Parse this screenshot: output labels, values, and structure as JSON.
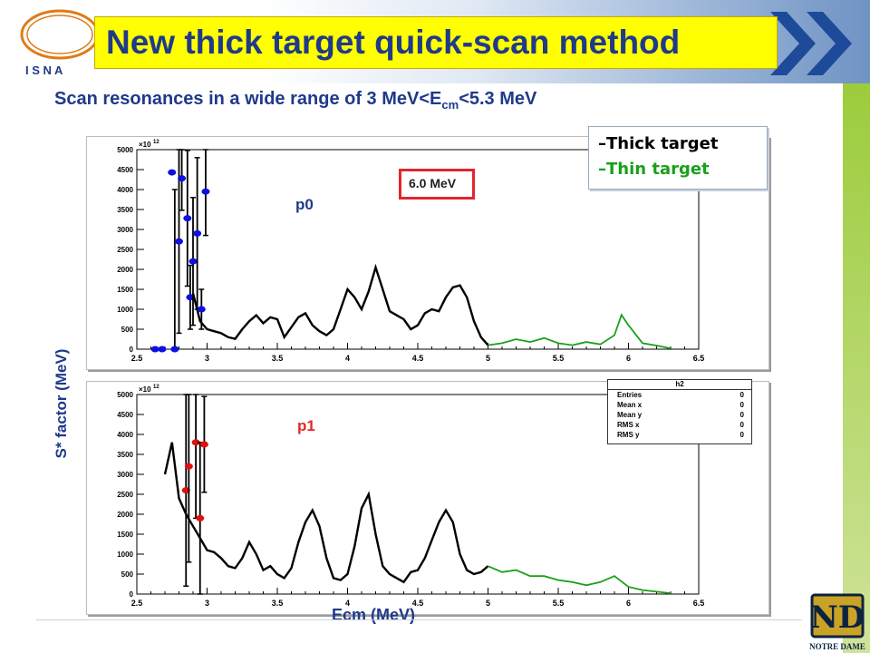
{
  "slide": {
    "title": "New thick target quick-scan method",
    "subtitle_pre": "Scan resonances in a wide range of 3 MeV<E",
    "subtitle_sub": "cm",
    "subtitle_post": "<5.3 MeV",
    "ylabel": "S* factor (MeV)",
    "xlabel": "Ecm (MeV)",
    "logo_letters": [
      "I",
      "S",
      "N",
      "A"
    ],
    "nd_caption": "NOTRE DAME",
    "colors": {
      "title_bg": "#ffff00",
      "title_text": "#1f3a8a",
      "thick": "#000000",
      "thin": "#1aa01a",
      "p0_points": "#1010e0",
      "p1_points": "#e01010",
      "red_label": "#e3262b"
    }
  },
  "legend": {
    "thick": "–Thick target",
    "thin": "–Thin target"
  },
  "marker_box": {
    "label": "6.0 MeV"
  },
  "stats_box": {
    "title": "h2",
    "rows": [
      {
        "name": "Entries",
        "value": "0"
      },
      {
        "name": "Mean x",
        "value": "0"
      },
      {
        "name": "Mean y",
        "value": "0"
      },
      {
        "name": "RMS x",
        "value": "0"
      },
      {
        "name": "RMS y",
        "value": "0"
      }
    ]
  },
  "chart_data": [
    {
      "type": "line",
      "panel_label": "p0",
      "y_multiplier": "×10",
      "y_multiplier_exp": "12",
      "xlim": [
        2.5,
        6.5
      ],
      "ylim": [
        0,
        5000
      ],
      "xticks": [
        2.5,
        3,
        3.5,
        4,
        4.5,
        5,
        5.5,
        6,
        6.5
      ],
      "xtick_labels": [
        "2.5",
        "3",
        "3.5",
        "4",
        "4.5",
        "5",
        "5.5",
        "6",
        "6.5"
      ],
      "yticks": [
        0,
        500,
        1000,
        1500,
        2000,
        2500,
        3000,
        3500,
        4000,
        4500,
        5000
      ],
      "ytick_labels": [
        "0",
        "500",
        "1000",
        "1500",
        "2000",
        "2500",
        "3000",
        "3500",
        "4000",
        "4500",
        "5000"
      ],
      "series": [
        {
          "style": "thick",
          "x": [
            2.9,
            2.95,
            3.0,
            3.05,
            3.1,
            3.15,
            3.2,
            3.25,
            3.3,
            3.35,
            3.4,
            3.45,
            3.5,
            3.55,
            3.6,
            3.65,
            3.7,
            3.75,
            3.8,
            3.85,
            3.9,
            3.95,
            4.0,
            4.05,
            4.1,
            4.15,
            4.2,
            4.25,
            4.3,
            4.35,
            4.4,
            4.45,
            4.5,
            4.55,
            4.6,
            4.65,
            4.7,
            4.75,
            4.8,
            4.85,
            4.9,
            4.95,
            5.0
          ],
          "y": [
            1400,
            700,
            500,
            450,
            400,
            300,
            260,
            500,
            700,
            850,
            650,
            800,
            750,
            300,
            550,
            800,
            900,
            600,
            450,
            350,
            500,
            1000,
            1500,
            1300,
            1000,
            1450,
            2050,
            1500,
            950,
            850,
            750,
            500,
            600,
            900,
            1000,
            950,
            1300,
            1550,
            1600,
            1300,
            700,
            300,
            100
          ]
        },
        {
          "style": "thin",
          "x": [
            5.0,
            5.1,
            5.2,
            5.3,
            5.4,
            5.5,
            5.6,
            5.7,
            5.8,
            5.9,
            5.95,
            6.0,
            6.1,
            6.2,
            6.3
          ],
          "y": [
            100,
            150,
            250,
            180,
            280,
            150,
            100,
            180,
            120,
            350,
            860,
            600,
            150,
            90,
            20
          ]
        }
      ],
      "points": [
        {
          "x": 2.63,
          "y": 0,
          "err": 0
        },
        {
          "x": 2.68,
          "y": 0,
          "err": 0
        },
        {
          "x": 2.75,
          "y": 4430,
          "err": 0
        },
        {
          "x": 2.77,
          "y": 0,
          "err": 4000
        },
        {
          "x": 2.8,
          "y": 2700,
          "err": 2300
        },
        {
          "x": 2.82,
          "y": 4280,
          "err": 800
        },
        {
          "x": 2.86,
          "y": 3280,
          "err": 1700
        },
        {
          "x": 2.88,
          "y": 1300,
          "err": 800
        },
        {
          "x": 2.9,
          "y": 2200,
          "err": 1600
        },
        {
          "x": 2.93,
          "y": 2900,
          "err": 1900
        },
        {
          "x": 2.96,
          "y": 1000,
          "err": 500
        },
        {
          "x": 2.99,
          "y": 3950,
          "err": 1100
        }
      ]
    },
    {
      "type": "line",
      "panel_label": "p1",
      "y_multiplier": "×10",
      "y_multiplier_exp": "12",
      "xlim": [
        2.5,
        6.5
      ],
      "ylim": [
        0,
        5000
      ],
      "xticks": [
        2.5,
        3,
        3.5,
        4,
        4.5,
        5,
        5.5,
        6,
        6.5
      ],
      "xtick_labels": [
        "2.5",
        "3",
        "3.5",
        "4",
        "4.5",
        "5",
        "5.5",
        "6",
        "6.5"
      ],
      "yticks": [
        0,
        500,
        1000,
        1500,
        2000,
        2500,
        3000,
        3500,
        4000,
        4500,
        5000
      ],
      "ytick_labels": [
        "0",
        "500",
        "1000",
        "1500",
        "2000",
        "2500",
        "3000",
        "3500",
        "4000",
        "4500",
        "5000"
      ],
      "series": [
        {
          "style": "thick",
          "x": [
            2.7,
            2.75,
            2.8,
            2.85,
            2.9,
            2.95,
            3.0,
            3.05,
            3.1,
            3.15,
            3.2,
            3.25,
            3.3,
            3.35,
            3.4,
            3.45,
            3.5,
            3.55,
            3.6,
            3.65,
            3.7,
            3.75,
            3.8,
            3.85,
            3.9,
            3.95,
            4.0,
            4.05,
            4.1,
            4.15,
            4.2,
            4.25,
            4.3,
            4.35,
            4.4,
            4.45,
            4.5,
            4.55,
            4.6,
            4.65,
            4.7,
            4.75,
            4.8,
            4.85,
            4.9,
            4.95,
            5.0
          ],
          "y": [
            3000,
            3800,
            2400,
            2000,
            1700,
            1400,
            1100,
            1050,
            900,
            700,
            650,
            900,
            1300,
            1000,
            600,
            700,
            500,
            400,
            650,
            1300,
            1800,
            2100,
            1700,
            900,
            400,
            350,
            500,
            1200,
            2150,
            2500,
            1500,
            700,
            500,
            400,
            300,
            550,
            600,
            900,
            1350,
            1800,
            2100,
            1800,
            1000,
            600,
            500,
            550,
            700
          ]
        },
        {
          "style": "thin",
          "x": [
            5.0,
            5.1,
            5.2,
            5.3,
            5.4,
            5.5,
            5.6,
            5.7,
            5.8,
            5.9,
            6.0,
            6.1,
            6.2,
            6.3
          ],
          "y": [
            700,
            550,
            600,
            450,
            450,
            350,
            300,
            220,
            300,
            450,
            180,
            100,
            60,
            20
          ]
        }
      ],
      "points": [
        {
          "x": 2.85,
          "y": 2600,
          "err": 2400
        },
        {
          "x": 2.87,
          "y": 3200,
          "err": 2400
        },
        {
          "x": 2.92,
          "y": 3800,
          "err": 1900
        },
        {
          "x": 2.95,
          "y": 1900,
          "err": 1900
        },
        {
          "x": 2.98,
          "y": 3750,
          "err": 1200
        }
      ]
    }
  ]
}
